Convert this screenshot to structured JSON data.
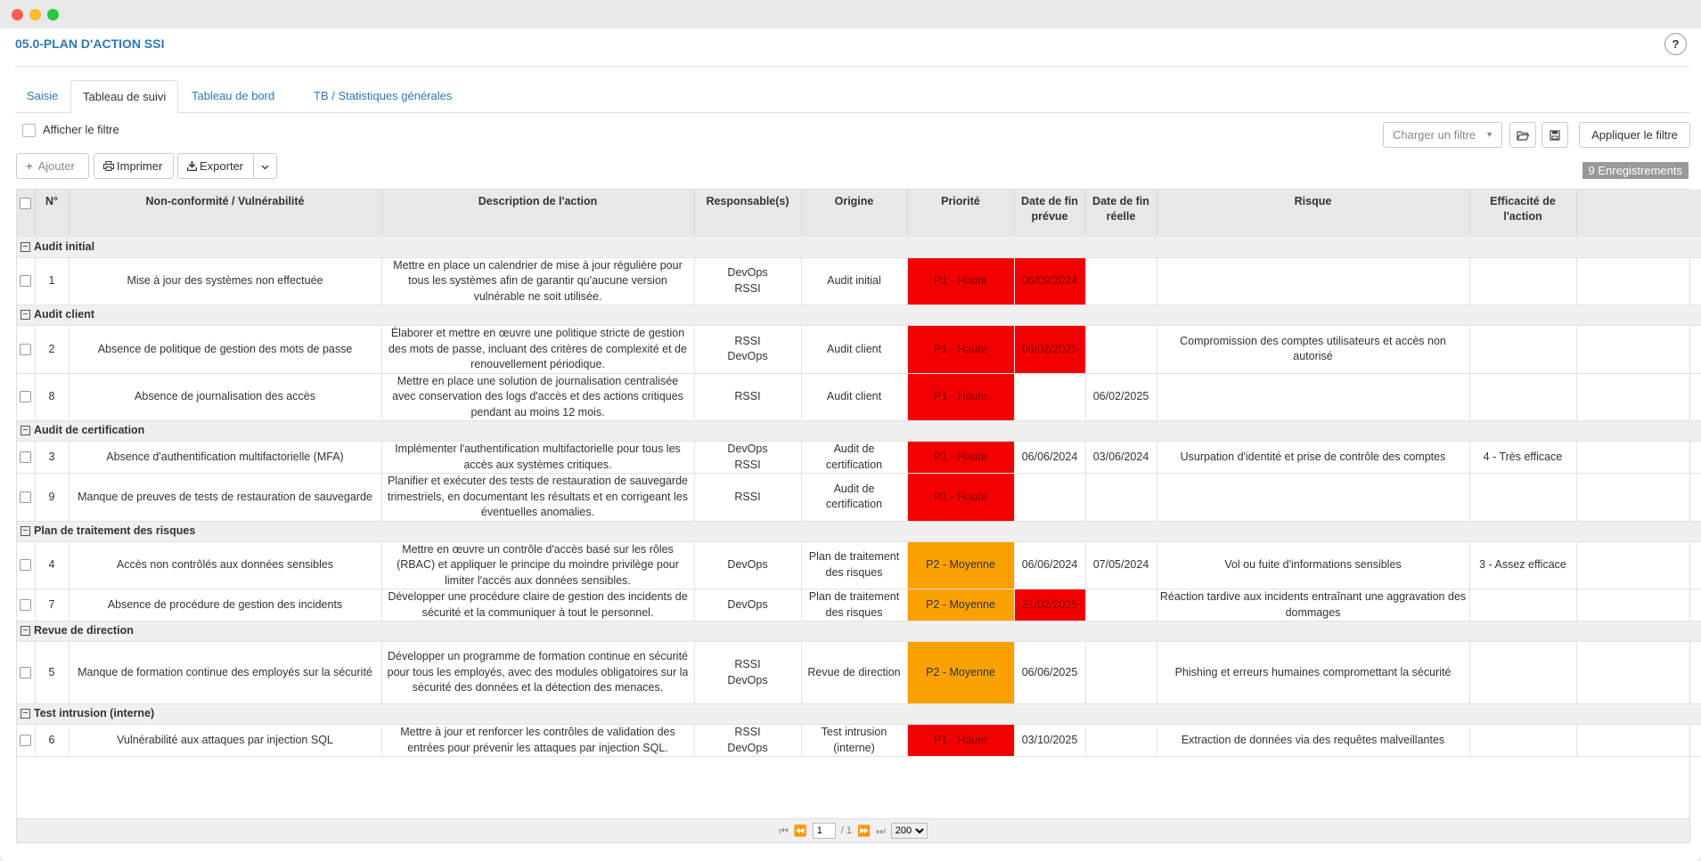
{
  "page": {
    "title": "05.0-PLAN D'ACTION SSI",
    "help": "?"
  },
  "tabs": [
    "Saisie",
    "Tableau de suivi",
    "Tableau de bord",
    "TB / Statistiques générales"
  ],
  "filter": {
    "toggle_label": "Afficher le filtre",
    "load_placeholder": "Charger un filtre",
    "apply_label": "Appliquer le filtre"
  },
  "toolbar": {
    "add": "Ajouter",
    "print": "Imprimer",
    "export": "Exporter",
    "add_icon": "plus-icon",
    "print_icon": "printer-icon",
    "export_icon": "download-icon"
  },
  "count": "9 Enregistrements",
  "columns": [
    "N°",
    "Non-conformité / Vulnérabilité",
    "Description de l'action",
    "Responsable(s)",
    "Origine",
    "Priorité",
    "Date de fin prévue",
    "Date de fin réelle",
    "Risque",
    "Efficacité de l'action"
  ],
  "colors": {
    "p1": "#f20000",
    "p2": "#f9a100",
    "link": "#2a7ab8"
  },
  "groups": [
    {
      "name": "Audit initial",
      "rows": [
        {
          "n": "1",
          "nc": "Mise à jour des systèmes non effectuée",
          "desc": "Mettre en place un calendrier de mise à jour régulière pour tous les systèmes afin de garantir qu'aucune version vulnérable ne soit utilisée.",
          "resp": [
            "DevOps",
            "RSSI"
          ],
          "orig": "Audit initial",
          "prio": "P1 - Haute",
          "plan": "06/09/2024",
          "plan_late": true,
          "real": "",
          "risk": "",
          "eff": ""
        }
      ]
    },
    {
      "name": "Audit client",
      "rows": [
        {
          "n": "2",
          "nc": "Absence de politique de gestion des mots de passe",
          "desc": "Élaborer et mettre en œuvre une politique stricte de gestion des mots de passe, incluant des critères de complexité et de renouvellement périodique.",
          "resp": [
            "RSSI",
            "DevOps"
          ],
          "orig": "Audit client",
          "prio": "P1 - Haute",
          "plan": "06/02/2025",
          "plan_late": true,
          "real": "",
          "risk": "Compromission des comptes utilisateurs et accès non autorisé",
          "eff": ""
        },
        {
          "n": "8",
          "nc": "Absence de journalisation des accès",
          "desc": "Mettre en place une solution de journalisation centralisée avec conservation des logs d'accès et des actions critiques pendant au moins 12 mois.",
          "resp": [
            "RSSI"
          ],
          "orig": "Audit client",
          "prio": "P1 - Haute",
          "plan": "",
          "plan_late": false,
          "real": "06/02/2025",
          "risk": "",
          "eff": ""
        }
      ]
    },
    {
      "name": "Audit de certification",
      "rows": [
        {
          "n": "3",
          "nc": "Absence d'authentification multifactorielle (MFA)",
          "desc": "Implémenter l'authentification multifactorielle pour tous les accès aux systèmes critiques.",
          "resp": [
            "DevOps",
            "RSSI"
          ],
          "orig": "Audit de certification",
          "prio": "P1 - Haute",
          "plan": "06/06/2024",
          "plan_late": false,
          "real": "03/06/2024",
          "risk": "Usurpation d'identité et prise de contrôle des comptes",
          "eff": "4 - Très efficace"
        },
        {
          "n": "9",
          "nc": "Manque de preuves de tests de restauration de sauvegarde",
          "desc": "Planifier et exécuter des tests de restauration de sauvegarde trimestriels, en documentant les résultats et en corrigeant les éventuelles anomalies.",
          "resp": [
            "RSSI"
          ],
          "orig": "Audit de certification",
          "prio": "P1 - Haute",
          "plan": "",
          "plan_late": false,
          "real": "",
          "risk": "",
          "eff": ""
        }
      ]
    },
    {
      "name": "Plan de traitement des risques",
      "rows": [
        {
          "n": "4",
          "nc": "Accès non contrôlés aux données sensibles",
          "desc": "Mettre en œuvre un contrôle d'accès basé sur les rôles (RBAC) et appliquer le principe du moindre privilège pour limiter l'accès aux données sensibles.",
          "resp": [
            "DevOps"
          ],
          "orig": "Plan de traitement des risques",
          "prio": "P2 - Moyenne",
          "plan": "06/06/2024",
          "plan_late": false,
          "real": "07/05/2024",
          "risk": "Vol ou fuite d'informations sensibles",
          "eff": "3 - Assez efficace"
        },
        {
          "n": "7",
          "nc": "Absence de procédure de gestion des incidents",
          "desc": "Développer une procédure claire de gestion des incidents de sécurité et la communiquer à tout le personnel.",
          "resp": [
            "DevOps"
          ],
          "orig": "Plan de traitement des risques",
          "prio": "P2 - Moyenne",
          "plan": "21/02/2025",
          "plan_late": true,
          "real": "",
          "risk": "Réaction tardive aux incidents entraînant une aggravation des dommages",
          "eff": ""
        }
      ]
    },
    {
      "name": "Revue de direction",
      "rows": [
        {
          "n": "5",
          "nc": "Manque de formation continue des employés sur la sécurité",
          "desc": "Développer un programme de formation continue en sécurité pour tous les employés, avec des modules obligatoires sur la sécurité des données et la détection des menaces.",
          "resp": [
            "RSSI",
            "DevOps"
          ],
          "orig": "Revue de direction",
          "prio": "P2 - Moyenne",
          "plan": "06/06/2025",
          "plan_late": false,
          "real": "",
          "risk": "Phishing et erreurs humaines compromettant la sécurité",
          "eff": ""
        }
      ]
    },
    {
      "name": "Test intrusion (interne)",
      "rows": [
        {
          "n": "6",
          "nc": "Vulnérabilité aux attaques par injection SQL",
          "desc": "Mettre à jour et renforcer les contrôles de validation des entrées pour prévenir les attaques par injection SQL.",
          "resp": [
            "RSSI",
            "DevOps"
          ],
          "orig": "Test intrusion (interne)",
          "prio": "P1 - Haute",
          "plan": "03/10/2025",
          "plan_late": false,
          "real": "",
          "risk": "Extraction de données via des requêtes malveillantes",
          "eff": ""
        }
      ]
    }
  ],
  "pager": {
    "page": "1",
    "total": "/ 1",
    "page_size": "200"
  }
}
